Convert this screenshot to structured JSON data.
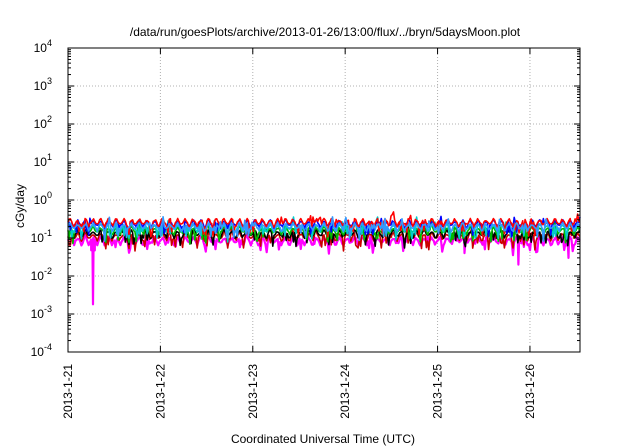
{
  "chart_data": {
    "type": "line",
    "title": "/data/run/goesPlots/archive/2013-01-26/13:00/flux/../bryn/5daysMoon.plot",
    "xlabel": "Coordinated Universal Time (UTC)",
    "ylabel": "cGy/day",
    "yscale": "log",
    "ylim": [
      0.0001,
      10000
    ],
    "xlim": [
      "2013-01-21 00:00",
      "2013-01-26 13:00"
    ],
    "grid": true,
    "x_ticks": [
      "2013-1-21",
      "2013-1-22",
      "2013-1-23",
      "2013-1-24",
      "2013-1-25",
      "2013-1-26"
    ],
    "y_ticks": [
      {
        "value": 0.0001,
        "base": "10",
        "exp": "-4"
      },
      {
        "value": 0.001,
        "base": "10",
        "exp": "-3"
      },
      {
        "value": 0.01,
        "base": "10",
        "exp": "-2"
      },
      {
        "value": 0.1,
        "base": "10",
        "exp": "-1"
      },
      {
        "value": 1,
        "base": "10",
        "exp": "0"
      },
      {
        "value": 10,
        "base": "10",
        "exp": "1"
      },
      {
        "value": 100,
        "base": "10",
        "exp": "2"
      },
      {
        "value": 1000,
        "base": "10",
        "exp": "3"
      },
      {
        "value": 10000,
        "base": "10",
        "exp": "4"
      }
    ],
    "series": [
      {
        "color": "#ff00ff",
        "level": 0.085,
        "values": [
          [
            "2013-01-21 06:00",
            0.09
          ],
          [
            "2013-01-21 06:30",
            0.0018
          ],
          [
            "2013-01-21 07:00",
            0.09
          ],
          [
            "2013-01-22 02:00",
            0.075
          ],
          [
            "2013-01-22 04:00",
            0.06
          ],
          [
            "2013-01-23 16:00",
            0.07
          ],
          [
            "2013-01-25 07:00",
            0.04
          ],
          [
            "2013-01-25 21:00",
            0.02
          ],
          [
            "2013-01-26 10:00",
            0.03
          ]
        ]
      },
      {
        "color": "#cc0000",
        "level": 0.11,
        "values": []
      },
      {
        "color": "#000000",
        "level": 0.13,
        "values": []
      },
      {
        "color": "#00bb00",
        "level": 0.16,
        "values": []
      },
      {
        "color": "#00cccc",
        "level": 0.19,
        "values": []
      },
      {
        "color": "#0000ff",
        "level": 0.24,
        "values": []
      },
      {
        "color": "#ff0000",
        "level": 0.26,
        "values": []
      },
      {
        "color": "#3399ff",
        "level": 0.2,
        "values": []
      }
    ]
  }
}
